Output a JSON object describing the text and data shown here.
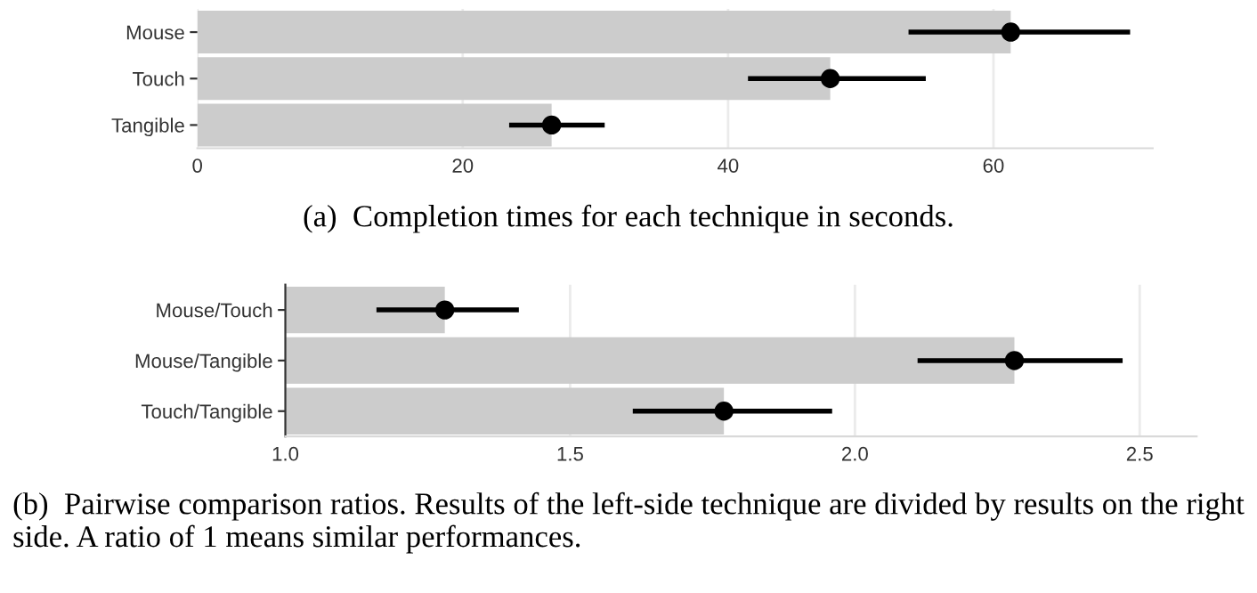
{
  "chart_data": [
    {
      "type": "bar",
      "orientation": "horizontal",
      "categories": [
        "Mouse",
        "Touch",
        "Tangible"
      ],
      "xlim": [
        0,
        72
      ],
      "xticks": [
        0,
        20,
        40,
        60
      ],
      "grid": "x",
      "annotations": [
        "(a)  Completion times for each technique in seconds."
      ],
      "series": [
        {
          "color": "#cccccc",
          "values": [
            61.3,
            47.7,
            26.7
          ]
        },
        {
          "type": "scatter",
          "marker": "circle",
          "color": "#000000",
          "values": [
            61.3,
            47.7,
            26.7
          ],
          "errors": [
            [
              53.6,
              70.3
            ],
            [
              41.5,
              54.9
            ],
            [
              23.5,
              30.7
            ]
          ]
        }
      ]
    },
    {
      "type": "bar",
      "orientation": "horizontal",
      "categories": [
        "Mouse/Touch",
        "Mouse/Tangible",
        "Touch/Tangible"
      ],
      "xlim": [
        1.0,
        2.6
      ],
      "xticks": [
        {
          "value": 1.0,
          "label": "1.0"
        },
        1.5,
        {
          "value": 2.0,
          "label": "2.0"
        },
        2.5
      ],
      "grid": "x",
      "annotations": [
        "(b)  Pairwise comparison ratios. Results of the left-side technique are divided by results on the right side. A ratio of 1 means similar performances."
      ],
      "series": [
        {
          "color": "#cccccc",
          "values": [
            1.28,
            2.28,
            1.77
          ]
        },
        {
          "type": "scatter",
          "marker": "circle",
          "color": "#000000",
          "values": [
            1.28,
            2.28,
            1.77
          ],
          "errors": [
            [
              1.16,
              1.41
            ],
            [
              2.11,
              2.47
            ],
            [
              1.61,
              1.96
            ]
          ]
        }
      ]
    }
  ]
}
